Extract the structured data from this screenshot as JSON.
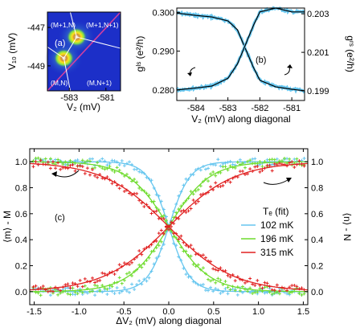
{
  "chart_data": [
    {
      "panel": "(a)",
      "type": "heatmap",
      "xlabel": "V₂ (mV)",
      "ylabel": "V₁₀ (mV)",
      "xticks": [
        "-583",
        "-581"
      ],
      "xtick_values": [
        -583,
        -581
      ],
      "yticks": [
        "-447",
        "-449"
      ],
      "ytick_values": [
        -447,
        -449
      ],
      "xlim": [
        -584.2,
        -580.2
      ],
      "ylim": [
        -450.3,
        -446.2
      ],
      "region_labels": [
        "(M+1,N)",
        "(M+1,N+1)",
        "(M,N)",
        "(M,N+1)"
      ],
      "triple_points": [
        {
          "x": -582.6,
          "y": -447.5
        },
        {
          "x": -583.3,
          "y": -448.6
        }
      ],
      "diagonal_color": "#d13fa0",
      "background_color": "#1c2fc8"
    },
    {
      "panel": "(b)",
      "type": "line",
      "xlabel": "V₂ (mV) along diagonal",
      "ylabel": "gˡˢ (e²/h)",
      "ylabel_right": "gʳˢ (e²/h)",
      "xticks": [
        "-584",
        "-583",
        "-582",
        "-581"
      ],
      "xtick_values": [
        -584,
        -583,
        -582,
        -581
      ],
      "yticks_left": [
        "0.280",
        "0.290",
        "0.300"
      ],
      "ytick_values_left": [
        0.28,
        0.29,
        0.3
      ],
      "yticks_right": [
        "0.199",
        "0.201",
        "0.203"
      ],
      "ytick_values_right": [
        0.199,
        0.201,
        0.203
      ],
      "xlim": [
        -584.6,
        -580.6
      ],
      "ylim": [
        0.2773,
        0.3011
      ],
      "ylim_right": [
        0.1985,
        0.2033
      ],
      "crossing_x": -582.35,
      "series": [
        {
          "axis": "left",
          "x": [
            -584.6,
            -584,
            -583.5,
            -583,
            -582.7,
            -582.5,
            -582.35,
            -582.2,
            -582,
            -581.5,
            -581,
            -580.6
          ],
          "y": [
            0.2998,
            0.2992,
            0.2988,
            0.2978,
            0.2955,
            0.2915,
            0.2887,
            0.2858,
            0.2825,
            0.2808,
            0.2802,
            0.2798
          ]
        },
        {
          "axis": "right",
          "x": [
            -584.6,
            -584,
            -583.5,
            -583,
            -582.7,
            -582.5,
            -582.35,
            -582.2,
            -582,
            -581.5,
            -581,
            -580.6
          ],
          "y": [
            0.19905,
            0.19915,
            0.19925,
            0.19965,
            0.2004,
            0.2012,
            0.2018,
            0.2024,
            0.2031,
            0.2033,
            0.2031,
            0.2031
          ]
        }
      ]
    },
    {
      "panel": "(c)",
      "type": "line",
      "xlabel": "ΔV₂ (mV) along diagonal",
      "ylabel": "⟨m⟩ - M",
      "ylabel_right": "⟨n⟩ - N",
      "xticks": [
        "-1.5",
        "-1.0",
        "-0.5",
        "0.0",
        "0.5",
        "1.0",
        "1.5"
      ],
      "xtick_values": [
        -1.5,
        -1.0,
        -0.5,
        0.0,
        0.5,
        1.0,
        1.5
      ],
      "yticks": [
        "0.0",
        "0.2",
        "0.4",
        "0.6",
        "0.8",
        "1.0"
      ],
      "ytick_values": [
        0.0,
        0.2,
        0.4,
        0.6,
        0.8,
        1.0
      ],
      "xlim": [
        -1.55,
        1.55
      ],
      "ylim": [
        -0.1,
        1.1
      ],
      "legend_title": "Tₑ (fit)",
      "legend_position": "right",
      "series": [
        {
          "name": "102 mK",
          "color": "#66c6ef",
          "kT_eff_mV": 0.117
        },
        {
          "name": "196 mK",
          "color": "#6fdc2e",
          "kT_eff_mV": 0.225
        },
        {
          "name": "315 mK",
          "color": "#e02020",
          "kT_eff_mV": 0.362
        }
      ]
    }
  ]
}
